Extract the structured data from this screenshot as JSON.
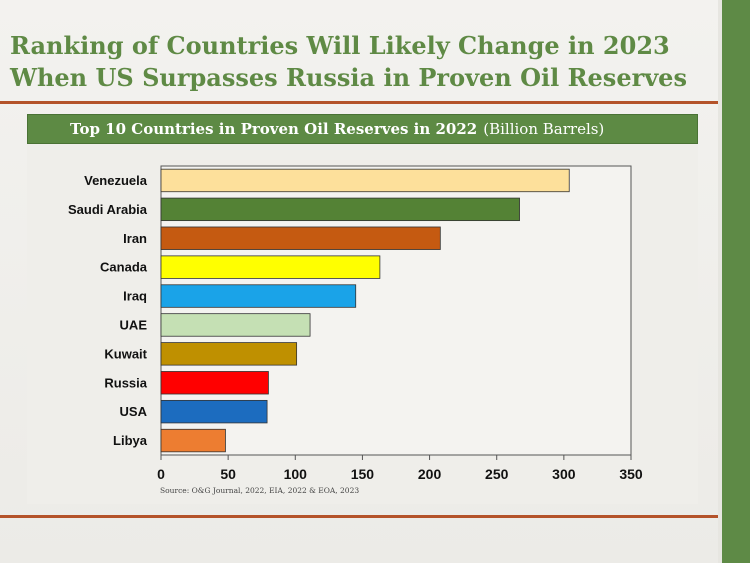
{
  "slide": {
    "title_line1": "Ranking of Countries Will Likely Change in 2023",
    "title_line2": "When US Surpasses Russia in Proven Oil Reserves",
    "accent_color": "#5d8a44",
    "rule_color": "#b4532a"
  },
  "chart_data": {
    "type": "bar",
    "orientation": "horizontal",
    "title": "Top 10 Countries in Proven Oil Reserves in 2022",
    "unit_label": "(Billion Barrels)",
    "categories": [
      "Venezuela",
      "Saudi Arabia",
      "Iran",
      "Canada",
      "Iraq",
      "UAE",
      "Kuwait",
      "Russia",
      "USA",
      "Libya"
    ],
    "values": [
      304,
      267,
      208,
      163,
      145,
      111,
      101,
      80,
      79,
      48
    ],
    "colors": [
      "#fde09b",
      "#548235",
      "#c55a11",
      "#ffff00",
      "#1aa3e8",
      "#c5e0b4",
      "#bf9000",
      "#ff0000",
      "#1c6cbf",
      "#ed7d31"
    ],
    "xlim": [
      0,
      350
    ],
    "xticks": [
      0,
      50,
      100,
      150,
      200,
      250,
      300,
      350
    ],
    "grid": false,
    "legend": "none",
    "source": "Source: O&G Journal, 2022, EIA, 2022 & EOA, 2023"
  }
}
